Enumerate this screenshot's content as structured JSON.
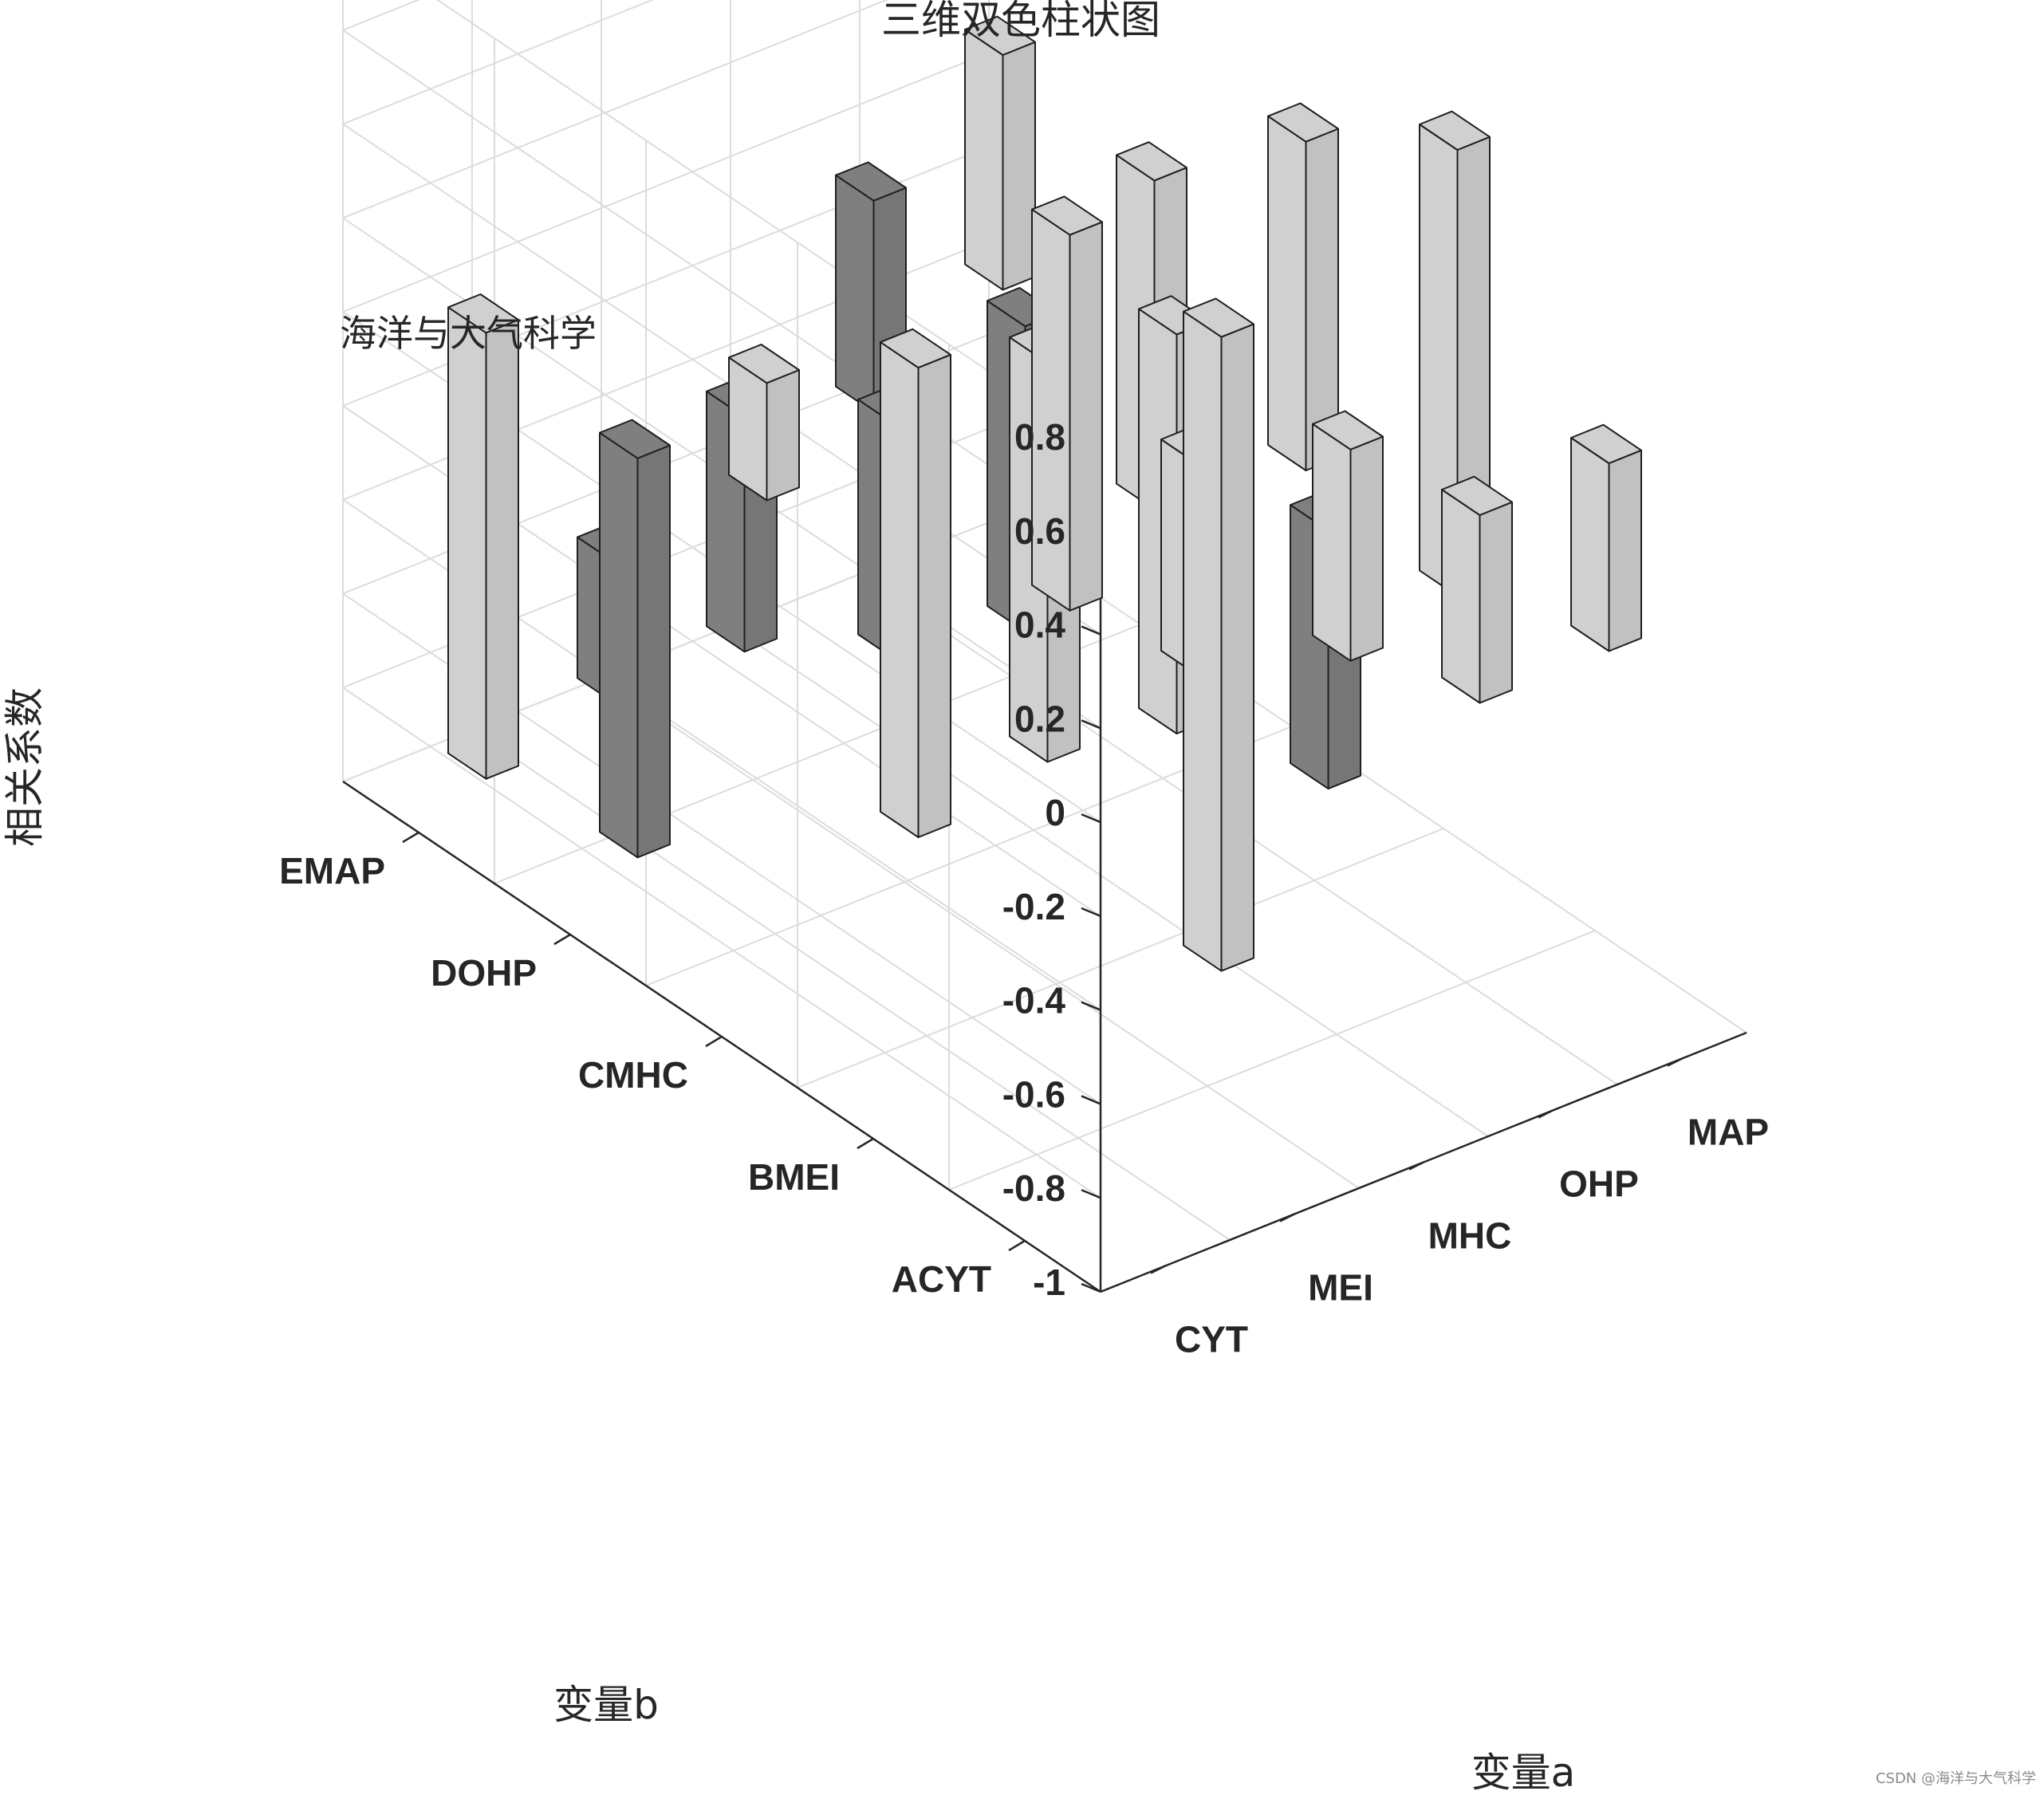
{
  "chart_data": {
    "type": "bar3d",
    "title": "三维双色柱状图",
    "annotation": "海洋与大气科学",
    "xlabel": "变量a",
    "ylabel": "变量b",
    "zlabel": "相关系数",
    "x_categories": [
      "CYT",
      "MEI",
      "MHC",
      "OHP",
      "MAP"
    ],
    "y_categories": [
      "ACYT",
      "BMEI",
      "CMHC",
      "DOHP",
      "EMAP"
    ],
    "zlim": [
      -1,
      0.8
    ],
    "z_ticks": [
      "0.8",
      "0.6",
      "0.4",
      "0.2",
      "0",
      "-0.2",
      "-0.4",
      "-0.6",
      "-0.8",
      "-1"
    ],
    "z_tick_values": [
      0.8,
      0.6,
      0.4,
      0.2,
      0,
      -0.2,
      -0.4,
      -0.6,
      -0.8,
      -1
    ],
    "grid": true,
    "colors": {
      "positive": "#d0d0d0",
      "negative": "#7f7f7f"
    },
    "bars": [
      {
        "x": "MEI",
        "y": "ACYT",
        "low": -0.55,
        "high": 0.8
      },
      {
        "x": "MEI",
        "y": "BMEI",
        "low": 0.0,
        "high": 0.8
      },
      {
        "x": "MHC",
        "y": "ACYT",
        "low": 0.0,
        "high": 0.45
      },
      {
        "x": "MHC",
        "y": "BMEI",
        "low": -0.25,
        "high": 0.2
      },
      {
        "x": "MHC",
        "y": "CMHC",
        "low": -0.65,
        "high": 0.2
      },
      {
        "x": "OHP",
        "y": "ACYT",
        "low": -0.2,
        "high": 0.2
      },
      {
        "x": "OHP",
        "y": "CMHC",
        "low": -0.7,
        "high": 0.15
      },
      {
        "x": "MAP",
        "y": "ACYT",
        "low": -0.2,
        "high": 0.2
      },
      {
        "x": "MAP",
        "y": "BMEI",
        "low": -0.3,
        "high": 0.65
      },
      {
        "x": "MAP",
        "y": "CMHC",
        "low": -0.25,
        "high": 0.45
      },
      {
        "x": "MAP",
        "y": "DOHP",
        "low": -0.55,
        "high": 0.15
      },
      {
        "x": "MAP",
        "y": "EMAP",
        "low": -0.3,
        "high": 0.2
      },
      {
        "x": "MHC",
        "y": "DOHP",
        "low": -0.65,
        "high": -0.15
      },
      {
        "x": "OHP",
        "y": "EMAP",
        "low": -0.45,
        "high": 0.0
      },
      {
        "x": "MEI",
        "y": "CMHC",
        "low": -0.7,
        "high": 0.3
      },
      {
        "x": "MEI",
        "y": "DOHP",
        "low": -0.2,
        "high": 0.05
      },
      {
        "x": "CYT",
        "y": "DOHP",
        "low": -0.85,
        "high": 0.0
      },
      {
        "x": "CYT",
        "y": "EMAP",
        "low": -0.9,
        "high": 0.05
      },
      {
        "x": "MEI",
        "y": "EMAP",
        "low": -0.85,
        "high": -0.55
      },
      {
        "x": "OHP",
        "y": "DOHP",
        "low": -0.7,
        "high": -0.05
      },
      {
        "x": "MHC",
        "y": "EMAP",
        "low": -0.85,
        "high": -0.35
      },
      {
        "x": "OHP",
        "y": "BMEI",
        "low": -0.6,
        "high": -0.05
      }
    ]
  },
  "watermark": "CSDN @海洋与大气科学"
}
